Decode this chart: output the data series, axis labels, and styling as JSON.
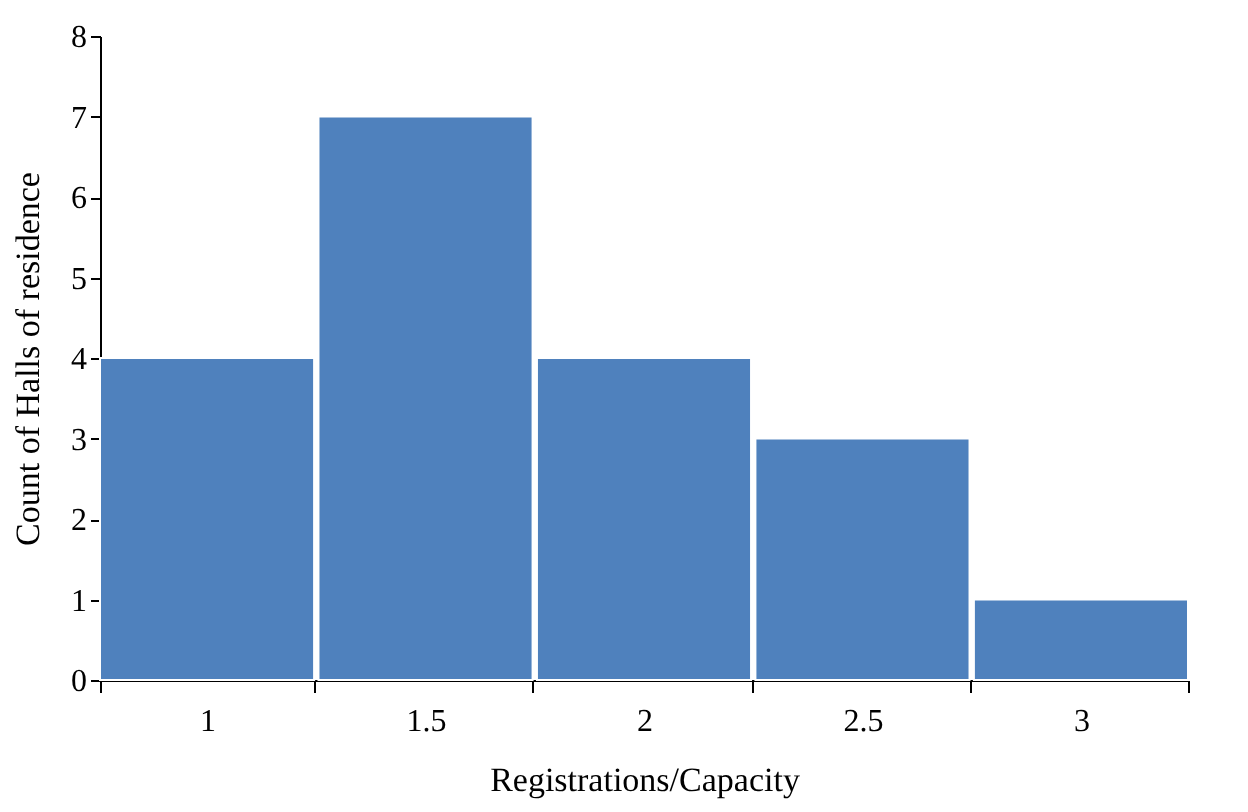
{
  "chart_data": {
    "type": "bar",
    "xlabel": "Registrations/Capacity",
    "ylabel": "Count of Halls of residence",
    "categories": [
      "1",
      "1.5",
      "2",
      "2.5",
      "3"
    ],
    "values": [
      4,
      7,
      4,
      3,
      1
    ],
    "color": "#4f81bd",
    "ylim": [
      0,
      8
    ],
    "yticks": [
      0,
      1,
      2,
      3,
      4,
      5,
      6,
      7,
      8
    ],
    "grid": false
  }
}
